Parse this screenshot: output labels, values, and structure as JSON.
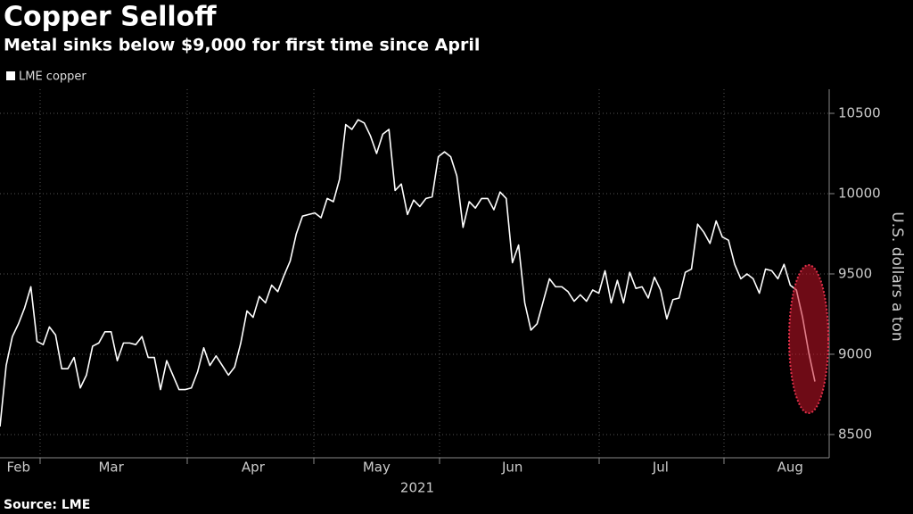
{
  "chart_data": {
    "type": "line",
    "title": "Copper Selloff",
    "subtitle": "Metal sinks below $9,000 for first time since April",
    "y_label": "U.S. dollars a ton",
    "year_label": "2021",
    "source": "Source: LME",
    "categories": [
      null,
      null,
      null,
      "Feb",
      null,
      null,
      null,
      null,
      null,
      null,
      null,
      null,
      null,
      null,
      null,
      null,
      null,
      null,
      "Mar",
      null,
      null,
      null,
      null,
      null,
      null,
      null,
      null,
      null,
      null,
      null,
      null,
      null,
      null,
      null,
      null,
      null,
      null,
      null,
      null,
      null,
      null,
      "Apr",
      null,
      null,
      null,
      null,
      null,
      null,
      null,
      null,
      null,
      null,
      null,
      null,
      null,
      null,
      null,
      null,
      null,
      null,
      null,
      "May",
      null,
      null,
      null,
      null,
      null,
      null,
      null,
      null,
      null,
      null,
      null,
      null,
      null,
      null,
      null,
      null,
      null,
      null,
      null,
      null,
      null,
      "Jun",
      null,
      null,
      null,
      null,
      null,
      null,
      null,
      null,
      null,
      null,
      null,
      null,
      null,
      null,
      null,
      null,
      null,
      null,
      null,
      null,
      null,
      null,
      null,
      "Jul",
      null,
      null,
      null,
      null,
      null,
      null,
      null,
      null,
      null,
      null,
      null,
      null,
      null,
      null,
      null,
      null,
      null,
      null,
      null,
      null,
      "Aug",
      null,
      null,
      null,
      null
    ],
    "series": [
      {
        "name": "LME copper",
        "color": "#ffffff",
        "values": [
          8550,
          8930,
          9110,
          9190,
          9290,
          9420,
          9080,
          9060,
          9170,
          9120,
          8910,
          8910,
          8980,
          8790,
          8870,
          9050,
          9070,
          9140,
          9140,
          8960,
          9070,
          9070,
          9060,
          9110,
          8980,
          8980,
          8780,
          8960,
          8870,
          8780,
          8780,
          8790,
          8890,
          9040,
          8930,
          8990,
          8930,
          8870,
          8920,
          9070,
          9270,
          9230,
          9360,
          9320,
          9430,
          9390,
          9490,
          9580,
          9750,
          9860,
          9870,
          9880,
          9850,
          9970,
          9950,
          10090,
          10430,
          10400,
          10460,
          10440,
          10360,
          10250,
          10370,
          10400,
          10020,
          10060,
          9870,
          9960,
          9920,
          9970,
          9980,
          10230,
          10260,
          10230,
          10110,
          9790,
          9950,
          9910,
          9970,
          9970,
          9900,
          10010,
          9970,
          9570,
          9680,
          9320,
          9150,
          9190,
          9330,
          9470,
          9420,
          9420,
          9390,
          9330,
          9370,
          9330,
          9400,
          9380,
          9520,
          9320,
          9460,
          9320,
          9510,
          9410,
          9420,
          9350,
          9480,
          9400,
          9220,
          9340,
          9350,
          9510,
          9530,
          9810,
          9760,
          9690,
          9830,
          9730,
          9710,
          9560,
          9470,
          9500,
          9470,
          9380,
          9530,
          9520,
          9470,
          9560,
          9430,
          9400,
          9230,
          9010,
          8830
        ]
      }
    ],
    "ylim": [
      8372,
      10650
    ],
    "yticks": [
      8500,
      9000,
      9500,
      10000,
      10500
    ],
    "grid": true
  }
}
